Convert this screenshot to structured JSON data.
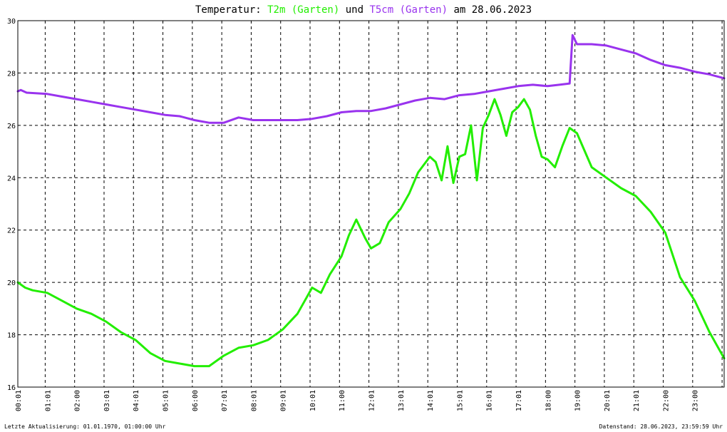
{
  "chart_data": {
    "type": "line",
    "title_parts": {
      "prefix": "Temperatur: ",
      "series1": "T2m (Garten)",
      "middle": " und ",
      "series2": "T5cm (Garten)",
      "suffix": " am 28.06.2023"
    },
    "colors": {
      "T2m": "#22ee00",
      "T5cm": "#9933ee",
      "grid": "#000000",
      "background": "#ffffff"
    },
    "ylim": [
      16,
      30
    ],
    "y_ticks": [
      "16",
      "18",
      "20",
      "22",
      "24",
      "26",
      "28",
      "30"
    ],
    "x_ticks": [
      "00:01",
      "01:01",
      "02:00",
      "03:01",
      "04:01",
      "05:01",
      "06:00",
      "07:01",
      "08:01",
      "09:01",
      "10:01",
      "11:00",
      "12:01",
      "13:01",
      "14:01",
      "15:01",
      "16:01",
      "17:01",
      "18:00",
      "19:00",
      "20:01",
      "21:01",
      "22:00",
      "23:00"
    ],
    "grid": true,
    "footer_left": "Letzte Aktualisierung: 01.01.1970, 01:00:00 Uhr",
    "footer_right": "Datenstand: 28.06.2023, 23:59:59 Uhr",
    "series": [
      {
        "name": "T2m (Garten)",
        "x": [
          0,
          0.25,
          0.5,
          1,
          1.5,
          2,
          2.5,
          3,
          3.5,
          4,
          4.5,
          5,
          5.5,
          6,
          6.5,
          7,
          7.5,
          8,
          8.5,
          9,
          9.5,
          9.8,
          10,
          10.3,
          10.6,
          11,
          11.25,
          11.5,
          11.8,
          12,
          12.3,
          12.6,
          13,
          13.3,
          13.6,
          14,
          14.2,
          14.4,
          14.6,
          14.8,
          15,
          15.2,
          15.4,
          15.6,
          15.8,
          16,
          16.2,
          16.4,
          16.6,
          16.8,
          17,
          17.2,
          17.4,
          17.6,
          17.8,
          18,
          18.25,
          18.5,
          18.75,
          19,
          19.5,
          20,
          20.5,
          21,
          21.5,
          22,
          22.5,
          23,
          23.5,
          24
        ],
        "values": [
          20.0,
          19.8,
          19.7,
          19.6,
          19.3,
          19.0,
          18.8,
          18.5,
          18.1,
          17.8,
          17.3,
          17.0,
          16.9,
          16.8,
          16.8,
          17.2,
          17.5,
          17.6,
          17.8,
          18.2,
          18.8,
          19.4,
          19.8,
          19.6,
          20.3,
          21.0,
          21.8,
          22.4,
          21.7,
          21.3,
          21.5,
          22.3,
          22.8,
          23.4,
          24.2,
          24.8,
          24.6,
          23.9,
          25.2,
          23.8,
          24.8,
          24.9,
          26.0,
          23.9,
          25.9,
          26.4,
          27.0,
          26.4,
          25.6,
          26.5,
          26.7,
          27.0,
          26.6,
          25.6,
          24.8,
          24.7,
          24.4,
          25.2,
          25.9,
          25.7,
          24.4,
          24.0,
          23.6,
          23.3,
          22.7,
          21.9,
          20.2,
          19.3,
          18.1,
          17.1
        ]
      },
      {
        "name": "T5cm (Garten)",
        "x": [
          0,
          0.1,
          0.3,
          1,
          1.5,
          2,
          2.5,
          3,
          3.5,
          4,
          4.5,
          5,
          5.5,
          6,
          6.5,
          7,
          7.5,
          8,
          8.5,
          9,
          9.5,
          10,
          10.5,
          11,
          11.5,
          12,
          12.5,
          13,
          13.5,
          14,
          14.5,
          15,
          15.5,
          16,
          16.5,
          17,
          17.5,
          18,
          18.4,
          18.75,
          18.85,
          19,
          19.5,
          20,
          20.5,
          21,
          21.5,
          22,
          22.5,
          23,
          23.5,
          24
        ],
        "values": [
          27.3,
          27.35,
          27.25,
          27.2,
          27.1,
          27.0,
          26.9,
          26.8,
          26.7,
          26.6,
          26.5,
          26.4,
          26.35,
          26.2,
          26.1,
          26.1,
          26.3,
          26.2,
          26.2,
          26.2,
          26.2,
          26.25,
          26.35,
          26.5,
          26.55,
          26.55,
          26.65,
          26.8,
          26.95,
          27.05,
          27.0,
          27.15,
          27.2,
          27.3,
          27.4,
          27.5,
          27.55,
          27.5,
          27.55,
          27.6,
          29.45,
          29.1,
          29.1,
          29.05,
          28.9,
          28.75,
          28.5,
          28.3,
          28.2,
          28.05,
          27.95,
          27.8
        ]
      }
    ]
  }
}
